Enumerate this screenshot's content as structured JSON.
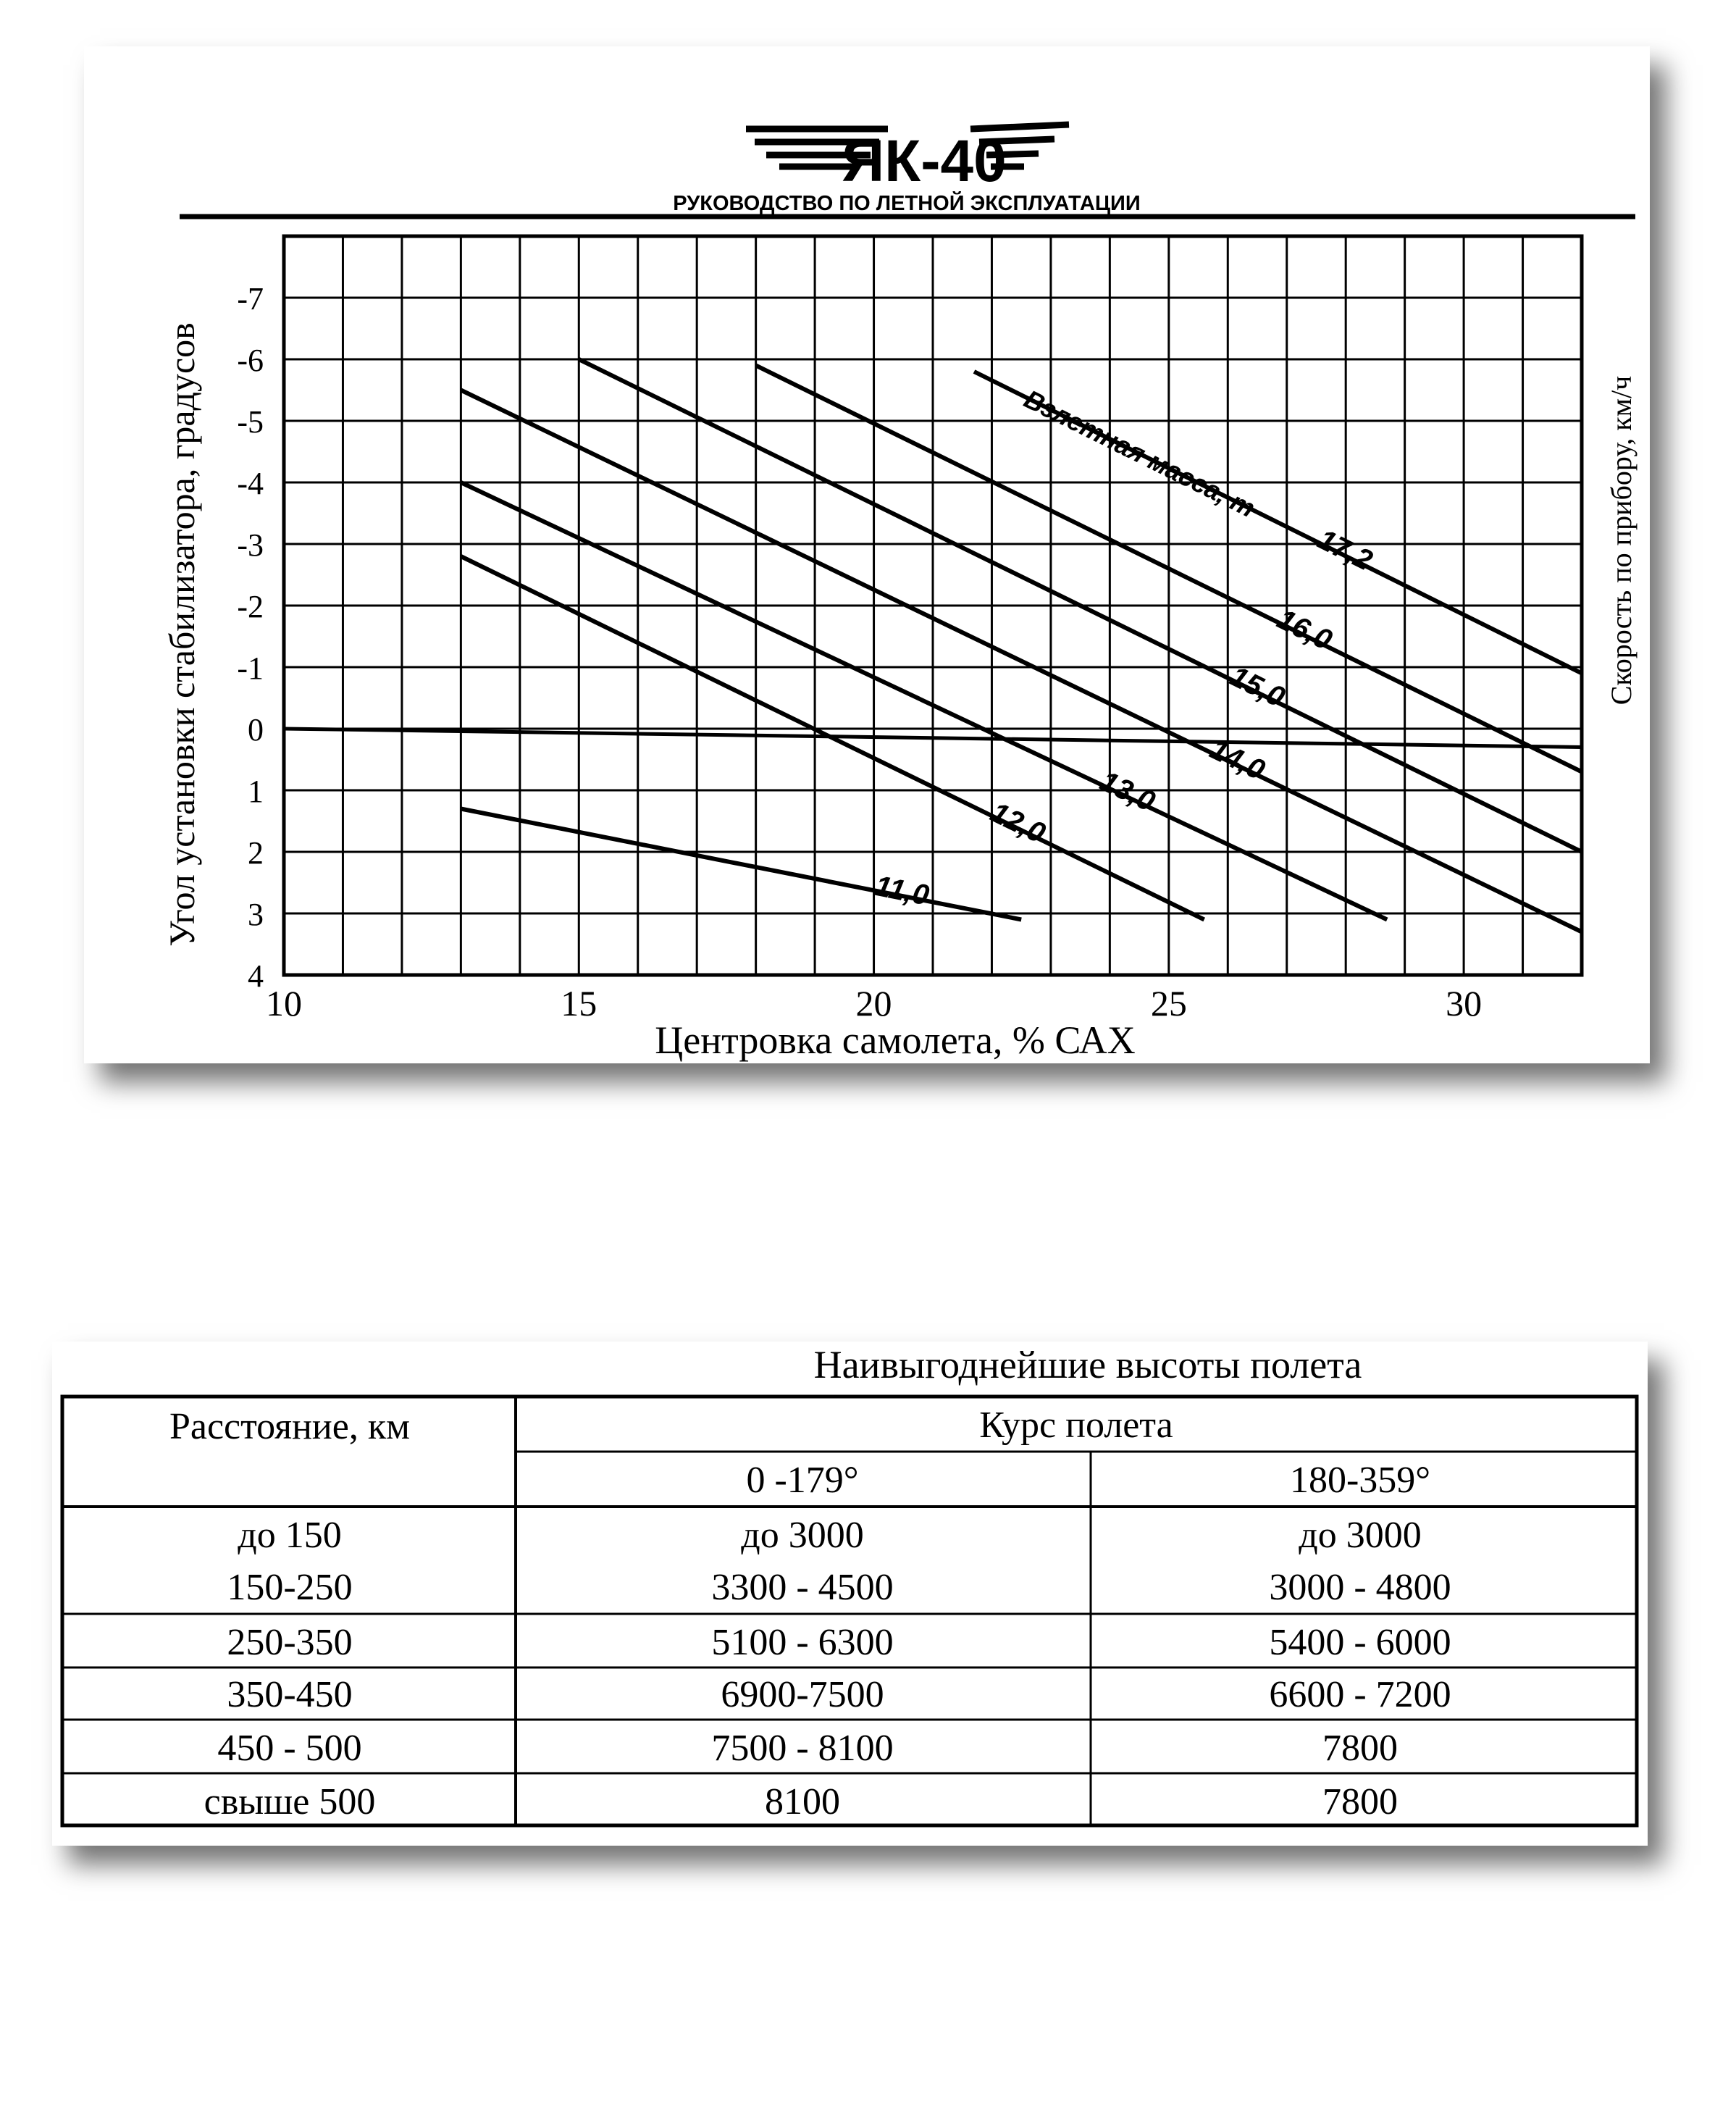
{
  "header": {
    "logo_text": "ЯК-40",
    "subtitle": "РУКОВОДСТВО ПО ЛЕТНОЙ ЭКСПЛУАТАЦИИ"
  },
  "chart_data": {
    "type": "line",
    "title": "",
    "xlabel": "Центровка самолета, % САХ",
    "ylabel": "Угол установки стабилизатора, градусов",
    "y2label": "Скорость по прибору, км/ч",
    "xlim": [
      10,
      32
    ],
    "ylim": [
      -8,
      4
    ],
    "y_inverted": true,
    "grid": true,
    "x_ticks": [
      10,
      15,
      20,
      25,
      30
    ],
    "x_tick_labels": [
      "10",
      "15",
      "20",
      "25",
      "30"
    ],
    "y_ticks": [
      -7,
      -6,
      -5,
      -4,
      -3,
      -2,
      -1,
      0,
      1,
      2,
      3,
      4
    ],
    "y_tick_labels": [
      "-7",
      "-6",
      "-5",
      "-4",
      "-3",
      "-2",
      "-1",
      "0",
      "1",
      "2",
      "3",
      "4"
    ],
    "legend_title": "Взлетная масса, т",
    "series": [
      {
        "name": "11,0",
        "points": [
          [
            13,
            1.3
          ],
          [
            22.5,
            3.1
          ]
        ]
      },
      {
        "name": "12,0",
        "points": [
          [
            13,
            -2.8
          ],
          [
            25.6,
            3.1
          ]
        ]
      },
      {
        "name": "13,0",
        "points": [
          [
            13,
            -4.0
          ],
          [
            28.7,
            3.1
          ]
        ]
      },
      {
        "name": "14,0",
        "points": [
          [
            13,
            -5.5
          ],
          [
            32,
            3.3
          ]
        ]
      },
      {
        "name": "15,0",
        "points": [
          [
            15,
            -6.0
          ],
          [
            32,
            2.0
          ]
        ]
      },
      {
        "name": "16,0",
        "points": [
          [
            18,
            -5.9
          ],
          [
            32,
            0.7
          ]
        ]
      },
      {
        "name": "17,2",
        "points": [
          [
            21.7,
            -5.8
          ],
          [
            32,
            -0.9
          ]
        ]
      }
    ],
    "reference_line": {
      "points": [
        [
          10,
          0
        ],
        [
          32,
          0.3
        ]
      ]
    }
  },
  "table": {
    "title": "Наивыгоднейшие высоты полета",
    "col_header_distance": "Расстояние, км",
    "col_header_course": "Курс полета",
    "sub_headers": [
      "0 -179°",
      "180-359°"
    ],
    "rows": [
      {
        "distance": [
          "до 150",
          "150-250"
        ],
        "c1": [
          "до 3000",
          "3300 - 4500"
        ],
        "c2": [
          "до 3000",
          "3000 - 4800"
        ]
      },
      {
        "distance": [
          "250-350"
        ],
        "c1": [
          "5100 - 6300"
        ],
        "c2": [
          "5400 - 6000"
        ]
      },
      {
        "distance": [
          "350-450"
        ],
        "c1": [
          "6900-7500"
        ],
        "c2": [
          "6600 - 7200"
        ]
      },
      {
        "distance": [
          "450 - 500"
        ],
        "c1": [
          "7500 - 8100"
        ],
        "c2": [
          "7800"
        ]
      },
      {
        "distance": [
          "свыше 500"
        ],
        "c1": [
          "8100"
        ],
        "c2": [
          "7800"
        ]
      }
    ]
  }
}
